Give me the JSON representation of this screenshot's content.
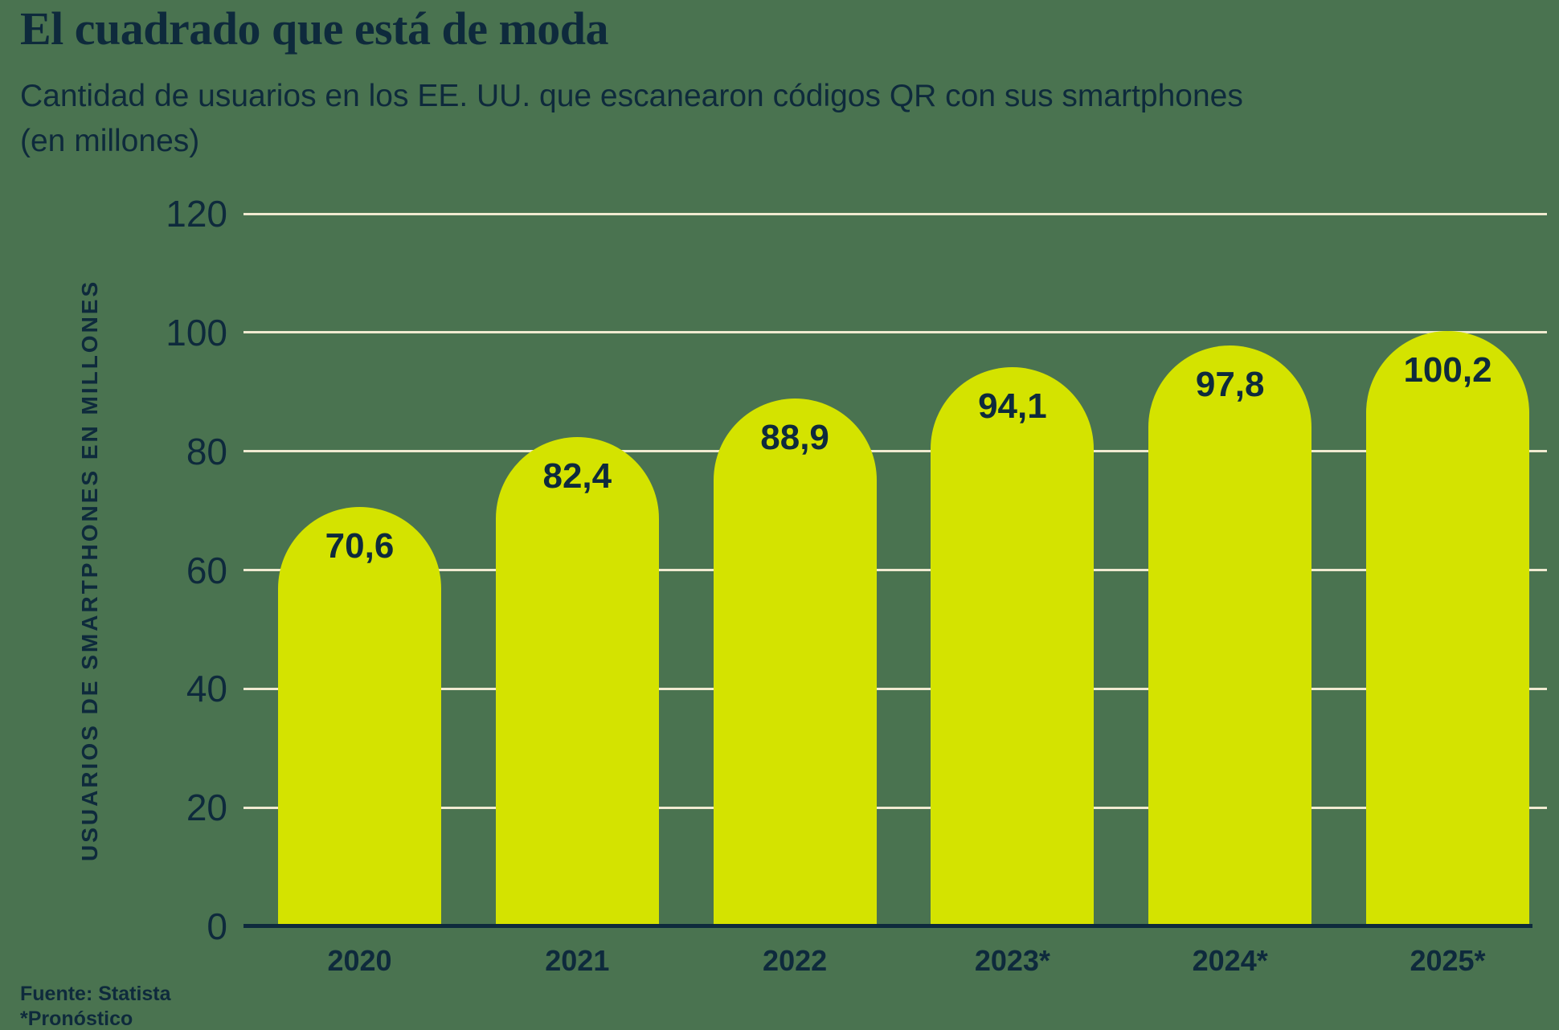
{
  "page": {
    "title": "El cuadrado que está de moda",
    "subtitle_line1": "Cantidad de usuarios en los EE. UU. que escanearon códigos QR con sus smartphones",
    "subtitle_line2": "(en millones)",
    "source": "Fuente: Statista",
    "forecast_note": "*Pronóstico"
  },
  "colors": {
    "background": "#4a7350",
    "bar": "#d4e300",
    "gridline": "#f0ead1",
    "text": "#0e2a3c"
  },
  "chart_data": {
    "type": "bar",
    "title": "El cuadrado que está de moda",
    "subtitle": "Cantidad de usuarios en los EE. UU. que escanearon códigos QR con sus smartphones (en millones)",
    "categories": [
      "2020",
      "2021",
      "2022",
      "2023*",
      "2024*",
      "2025*"
    ],
    "values": [
      70.6,
      82.4,
      88.9,
      94.1,
      97.8,
      100.2
    ],
    "value_labels": [
      "70,6",
      "82,4",
      "88,9",
      "94,1",
      "97,8",
      "100,2"
    ],
    "xlabel": "",
    "ylabel": "USUARIOS DE SMARTPHONES EN MILLONES",
    "yticks": [
      0,
      20,
      40,
      60,
      80,
      100,
      120
    ],
    "ylim": [
      0,
      120
    ],
    "grid": true,
    "legend": false,
    "bar_shape": "rounded-top",
    "source": "Fuente: Statista",
    "footnote": "*Pronóstico"
  }
}
